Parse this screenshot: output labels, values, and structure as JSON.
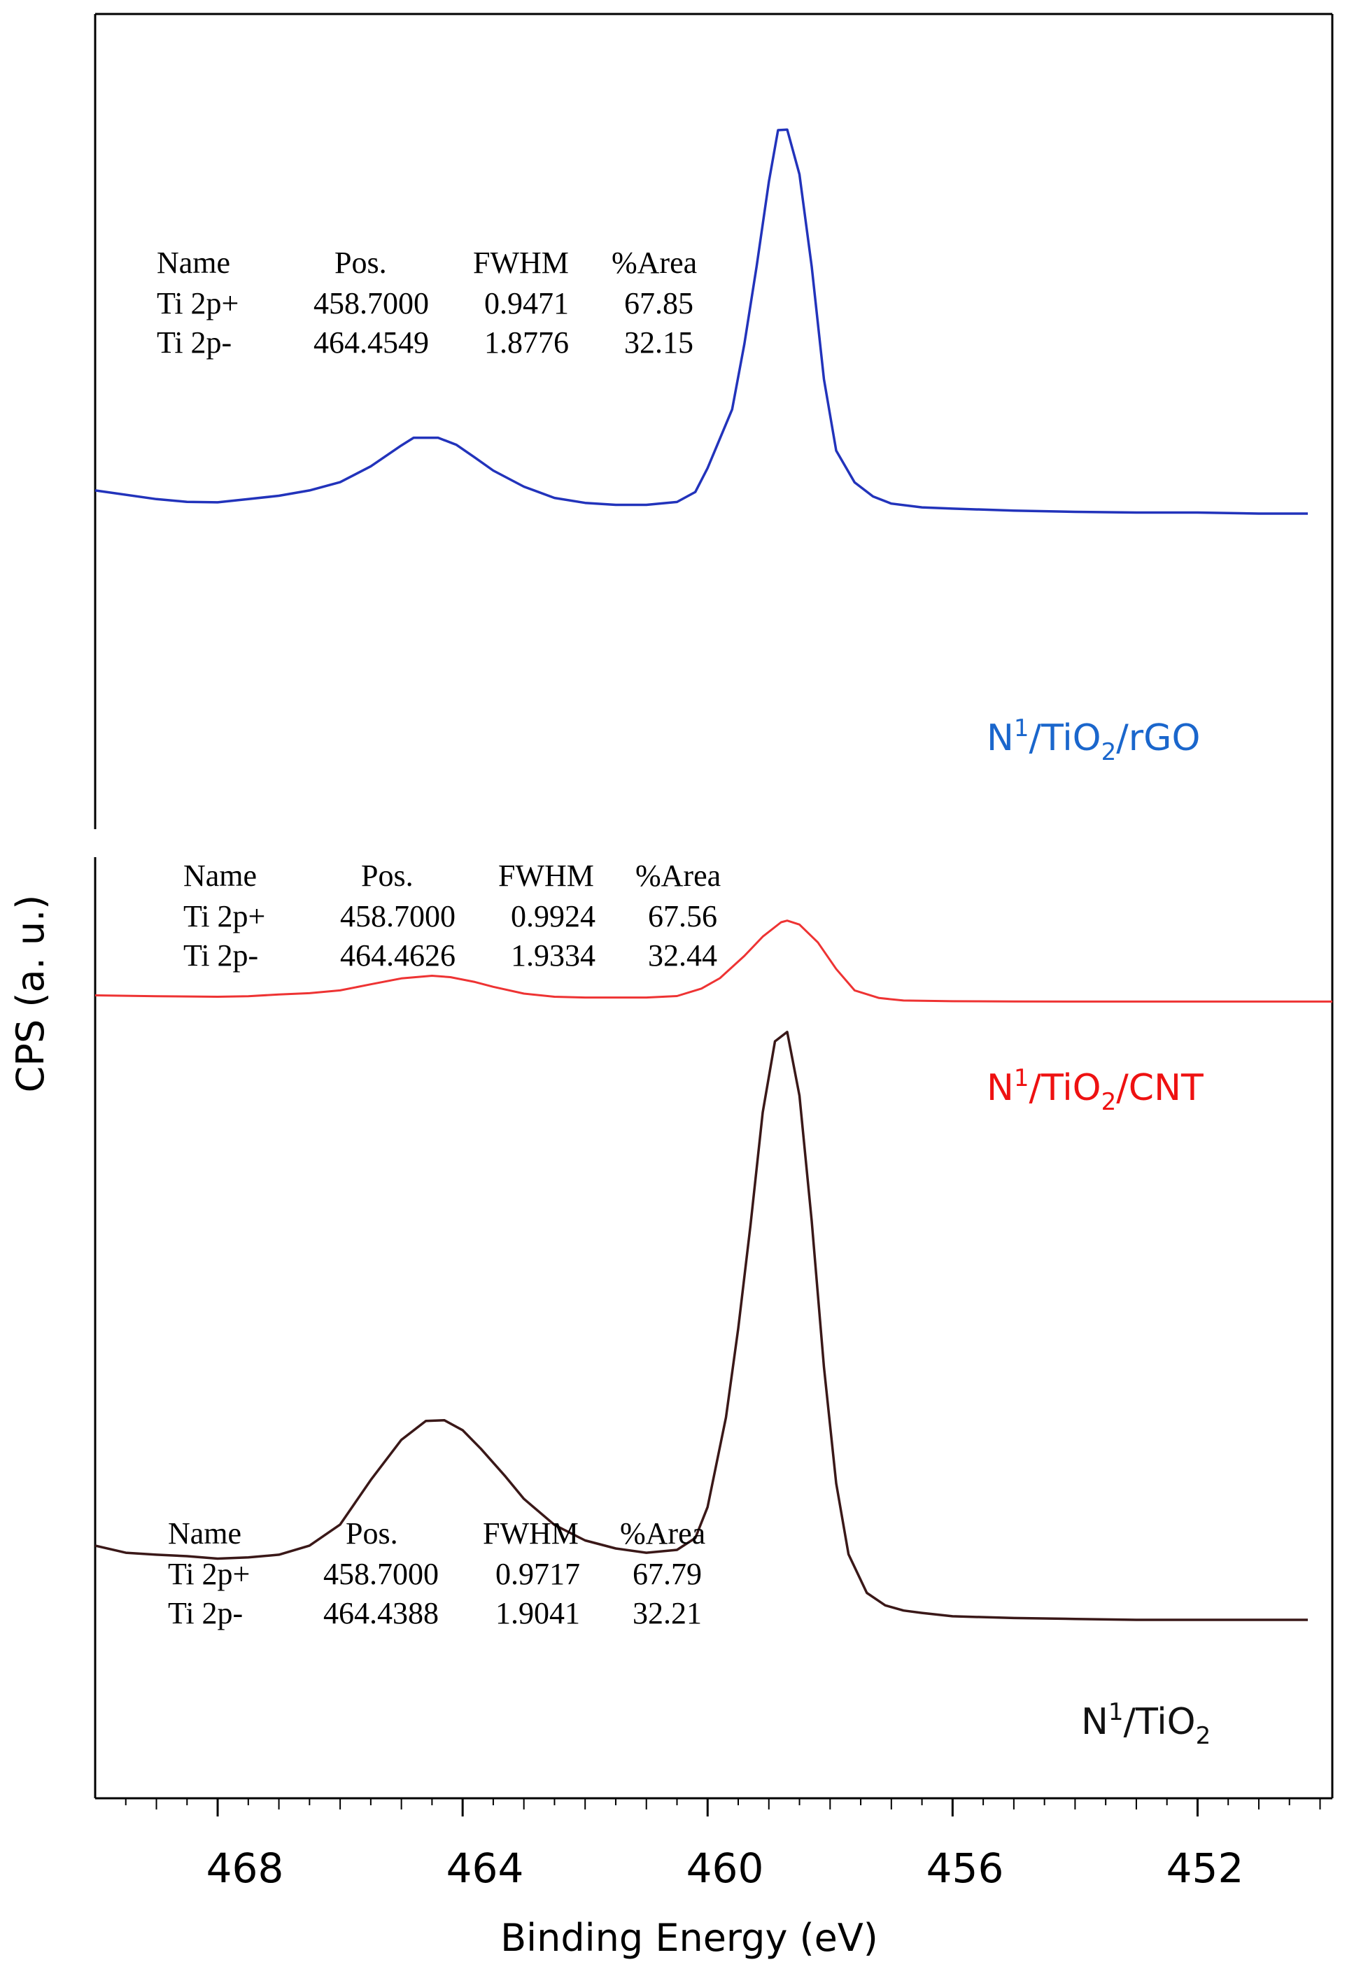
{
  "chart_data": {
    "type": "line",
    "xlabel": "Binding Energy (eV)",
    "ylabel": "CPS (a. u.)",
    "xlim": [
      470,
      449.8
    ],
    "x_reversed": true,
    "xticks": [
      468,
      464,
      460,
      456,
      452
    ],
    "xtick_labels": [
      "468",
      "464",
      "460",
      "456",
      "452"
    ],
    "y_units": "a. u. (vertically offset, normalized)",
    "ylim": [
      0,
      1
    ],
    "grid": false,
    "series": [
      {
        "id": "rgo",
        "name_parts": [
          "N",
          "1",
          "/TiO",
          "2",
          "/rGO"
        ],
        "color": "#2233bb",
        "label_color": "#1a66cc",
        "x": [
          470,
          469,
          468.5,
          468,
          467.5,
          467,
          466.5,
          466,
          465.5,
          465,
          464.8,
          464.4,
          464.1,
          463.8,
          463.5,
          463,
          462.5,
          462,
          461.5,
          461,
          460.5,
          460.2,
          460,
          459.6,
          459.4,
          459.2,
          459.0,
          458.85,
          458.7,
          458.5,
          458.3,
          458.1,
          457.9,
          457.6,
          457.3,
          457,
          456.5,
          456,
          455,
          454,
          453,
          452,
          451,
          450.2
        ],
        "y": [
          0.733,
          0.7281,
          0.7266,
          0.7263,
          0.7281,
          0.73,
          0.733,
          0.7376,
          0.7465,
          0.7582,
          0.7625,
          0.7625,
          0.7585,
          0.7514,
          0.7441,
          0.7351,
          0.7288,
          0.726,
          0.7249,
          0.7249,
          0.7265,
          0.7321,
          0.7455,
          0.7784,
          0.8151,
          0.8586,
          0.906,
          0.9349,
          0.9352,
          0.9101,
          0.8585,
          0.7953,
          0.7553,
          0.7375,
          0.7296,
          0.7256,
          0.7235,
          0.7228,
          0.7217,
          0.721,
          0.7206,
          0.7206,
          0.72,
          0.72
        ],
        "fit_table": {
          "headers": [
            "Name",
            "Pos.",
            "FWHM",
            "%Area"
          ],
          "rows": [
            {
              "name": "Ti 2p+",
              "pos": "458.7000",
              "fwhm": "0.9471",
              "area": "67.85"
            },
            {
              "name": "Ti 2p-",
              "pos": "464.4549",
              "fwhm": "1.8776",
              "area": "32.15"
            }
          ]
        }
      },
      {
        "id": "cnt",
        "name_parts": [
          "N",
          "1",
          "/TiO",
          "2",
          "/CNT"
        ],
        "color": "#ee3333",
        "label_color": "#ee1111",
        "x": [
          470,
          469,
          468,
          467.5,
          467,
          466.5,
          466,
          465.5,
          465,
          464.5,
          464.2,
          463.8,
          463.5,
          463,
          462.5,
          462,
          461,
          460.5,
          460.1,
          459.8,
          459.4,
          459.1,
          458.8,
          458.7,
          458.5,
          458.2,
          457.9,
          457.6,
          457.2,
          456.8,
          456,
          455,
          454,
          453,
          452,
          451,
          450.2,
          449.8
        ],
        "y": [
          0.45,
          0.4495,
          0.4492,
          0.4495,
          0.4505,
          0.4512,
          0.4528,
          0.4562,
          0.4595,
          0.461,
          0.4602,
          0.4575,
          0.4548,
          0.451,
          0.4492,
          0.4488,
          0.4488,
          0.4496,
          0.4538,
          0.4596,
          0.4721,
          0.4829,
          0.491,
          0.4919,
          0.4897,
          0.4797,
          0.4648,
          0.4528,
          0.4485,
          0.4471,
          0.4467,
          0.4466,
          0.4465,
          0.4465,
          0.4465,
          0.4465,
          0.4465,
          0.4465
        ]
      },
      {
        "id": "tio2",
        "name_parts": [
          "N",
          "1",
          "/TiO",
          "2",
          ""
        ],
        "color": "#3a1818",
        "label_color": "#111111",
        "x": [
          470,
          469.5,
          469,
          468.5,
          468,
          467.5,
          467,
          466.5,
          466,
          465.5,
          465,
          464.6,
          464.3,
          464,
          463.7,
          463.3,
          463,
          462.5,
          462,
          461.5,
          461,
          460.5,
          460.2,
          460,
          459.7,
          459.5,
          459.3,
          459.1,
          458.9,
          458.7,
          458.5,
          458.3,
          458.1,
          457.9,
          457.7,
          457.4,
          457.1,
          456.8,
          456.5,
          456,
          455,
          454,
          453,
          452,
          451,
          450.2
        ],
        "y": [
          0.1416,
          0.1376,
          0.1365,
          0.1357,
          0.1343,
          0.135,
          0.1365,
          0.1416,
          0.1534,
          0.1784,
          0.2009,
          0.2115,
          0.2119,
          0.2063,
          0.1958,
          0.1803,
          0.1678,
          0.1532,
          0.1445,
          0.14,
          0.1376,
          0.1392,
          0.1459,
          0.1632,
          0.2135,
          0.2633,
          0.321,
          0.3844,
          0.4242,
          0.4295,
          0.3938,
          0.3236,
          0.2417,
          0.1765,
          0.1368,
          0.1151,
          0.1081,
          0.1052,
          0.1039,
          0.102,
          0.101,
          0.1005,
          0.1,
          0.1,
          0.1,
          0.1
        ],
        "fit_table": {
          "headers": [
            "Name",
            "Pos.",
            "FWHM",
            "%Area"
          ],
          "rows": [
            {
              "name": "Ti 2p+",
              "pos": "458.7000",
              "fwhm": "0.9717",
              "area": "67.79"
            },
            {
              "name": "Ti 2p-",
              "pos": "464.4388",
              "fwhm": "1.9041",
              "area": "32.21"
            }
          ]
        }
      }
    ],
    "middle_fit_table": {
      "headers": [
        "Name",
        "Pos.",
        "FWHM",
        "%Area"
      ],
      "rows": [
        {
          "name": "Ti 2p+",
          "pos": "458.7000",
          "fwhm": "0.9924",
          "area": "67.56"
        },
        {
          "name": "Ti 2p-",
          "pos": "464.4626",
          "fwhm": "1.9334",
          "area": "32.44"
        }
      ]
    },
    "row_name_colors": [
      "#ee22cc",
      "#22cccc"
    ]
  }
}
